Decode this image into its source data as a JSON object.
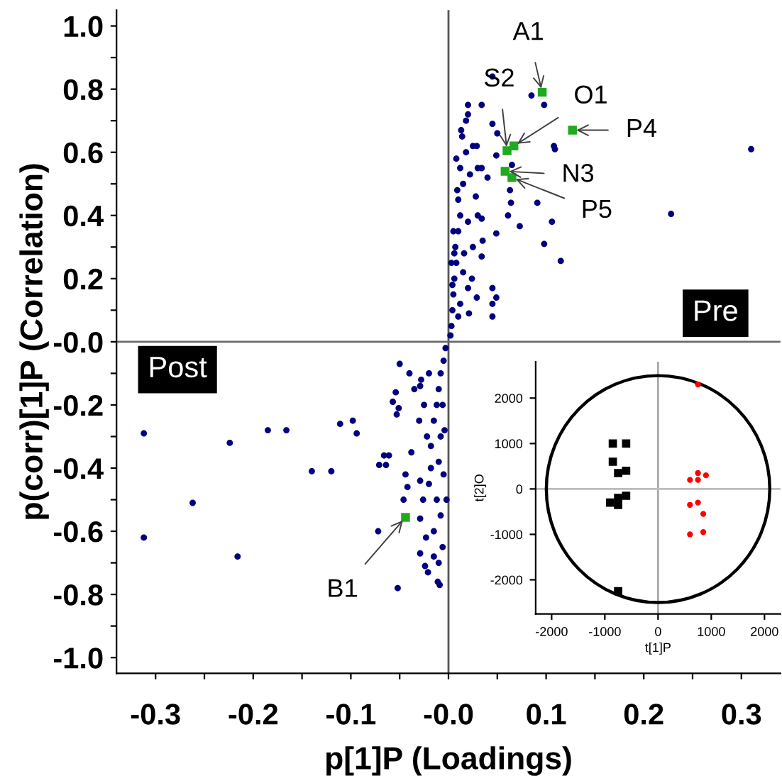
{
  "chart_data": [
    {
      "type": "scatter",
      "xlabel": "p[1]P (Loadings)",
      "ylabel": "p(corr)[1]P (Correlation)",
      "xlim": [
        -0.34,
        0.34
      ],
      "ylim": [
        -1.05,
        1.05
      ],
      "xticks": [
        -0.3,
        {
          "value": -0.25,
          "label": null
        },
        -0.2,
        {
          "value": -0.15,
          "label": null
        },
        -0.1,
        {
          "value": -0.05,
          "label": null
        },
        {
          "value": 0,
          "label": "-0.0"
        },
        {
          "value": 0.05,
          "label": null
        },
        0.1,
        {
          "value": 0.15,
          "label": null
        },
        0.2,
        {
          "value": 0.25,
          "label": null
        },
        0.3
      ],
      "yticks": [
        {
          "value": -1,
          "label": "-1.0"
        },
        {
          "value": -0.9,
          "label": null
        },
        -0.8,
        {
          "value": -0.7,
          "label": null
        },
        -0.6,
        {
          "value": -0.5,
          "label": null
        },
        -0.4,
        {
          "value": -0.3,
          "label": null
        },
        -0.2,
        {
          "value": -0.1,
          "label": null
        },
        {
          "value": 0,
          "label": "-0.0"
        },
        {
          "value": 0.1,
          "label": null
        },
        0.2,
        {
          "value": 0.3,
          "label": null
        },
        0.4,
        {
          "value": 0.5,
          "label": null
        },
        0.6,
        {
          "value": 0.7,
          "label": null
        },
        0.8,
        {
          "value": 0.9,
          "label": null
        },
        {
          "value": 1,
          "label": "1.0"
        }
      ],
      "grid": false,
      "ref_lines": [
        {
          "axis": "x",
          "value": 0,
          "color": "#555555"
        },
        {
          "axis": "y",
          "value": 0,
          "color": "#6a6a6a"
        }
      ],
      "series": [
        {
          "color": "#000080",
          "marker": "circle",
          "x": [
            0.045,
            0.085,
            0.098,
            0.02,
            0.034,
            0.045,
            0.05,
            0.108,
            0.109,
            0.31,
            0.228,
            0.091,
            0.106,
            0.098,
            0.115,
            0.073,
            0.064,
            0.061,
            0.049,
            0.045,
            0.049,
            0.045,
            0.045,
            0.034,
            0.034,
            0.029,
            0.021,
            0.024,
            0.035,
            0.034,
            0.04,
            0.049,
            0.065,
            0.063,
            0.029,
            0.002,
            0.003,
            0.004,
            0.005,
            0.006,
            0.008,
            0.007,
            0.01,
            0.012,
            0.01,
            0.015,
            0.012,
            0.018,
            0.014,
            0.018,
            0.02,
            0.025,
            0.022,
            0.028,
            0.02,
            0.025,
            0.015,
            0.012,
            0.006,
            0.004,
            0.009,
            0.005,
            0.003,
            0.016,
            0.02,
            0.01,
            0.008,
            0.013,
            0.03,
            0.03,
            -0.312,
            -0.224,
            -0.185,
            -0.166,
            -0.111,
            -0.098,
            -0.094,
            -0.14,
            -0.12,
            -0.262,
            -0.312,
            -0.216,
            -0.072,
            -0.052,
            -0.071,
            -0.066,
            -0.061,
            -0.064,
            -0.053,
            -0.054,
            -0.057,
            -0.051,
            -0.044,
            -0.046,
            -0.042,
            -0.029,
            -0.029,
            -0.021,
            -0.024,
            -0.011,
            -0.009,
            -0.015,
            -0.029,
            -0.023,
            -0.026,
            -0.05,
            -0.029,
            -0.003,
            -0.005,
            -0.008,
            -0.01,
            -0.012,
            -0.015,
            -0.008,
            -0.018,
            -0.01,
            -0.005,
            -0.02,
            -0.012,
            -0.008,
            -0.015,
            -0.006,
            -0.018,
            -0.022,
            -0.025,
            -0.02,
            -0.028,
            -0.03,
            -0.004,
            -0.006,
            -0.035,
            -0.04,
            -0.038,
            -0.002,
            -0.01
          ],
          "values": [
            0.84,
            0.78,
            0.75,
            0.75,
            0.75,
            0.69,
            0.66,
            0.62,
            0.61,
            0.61,
            0.405,
            0.44,
            0.38,
            0.31,
            0.256,
            0.366,
            0.44,
            0.4,
            0.343,
            0.17,
            0.14,
            0.12,
            0.08,
            0.39,
            0.27,
            0.14,
            0.09,
            0.2,
            0.32,
            0.55,
            0.52,
            0.59,
            0.56,
            0.48,
            0.62,
            0.02,
            0.05,
            0.1,
            0.15,
            0.2,
            0.25,
            0.3,
            0.35,
            0.4,
            0.45,
            0.5,
            0.55,
            0.6,
            0.65,
            0.7,
            0.72,
            0.62,
            0.53,
            0.46,
            0.38,
            0.3,
            0.22,
            0.12,
            0.28,
            0.18,
            0.48,
            0.35,
            0.25,
            0.28,
            0.17,
            0.08,
            0.58,
            0.67,
            0.55,
            0.4,
            -0.29,
            -0.32,
            -0.28,
            -0.28,
            -0.26,
            -0.25,
            -0.29,
            -0.41,
            -0.41,
            -0.51,
            -0.62,
            -0.68,
            -0.6,
            -0.78,
            -0.39,
            -0.36,
            -0.36,
            -0.39,
            -0.23,
            -0.16,
            -0.19,
            -0.21,
            -0.42,
            -0.5,
            -0.46,
            -0.44,
            -0.67,
            -0.73,
            -0.71,
            -0.76,
            -0.77,
            -0.68,
            -0.56,
            -0.62,
            -0.5,
            -0.07,
            -0.14,
            -0.02,
            -0.06,
            -0.1,
            -0.15,
            -0.2,
            -0.25,
            -0.3,
            -0.33,
            -0.38,
            -0.42,
            -0.45,
            -0.5,
            -0.55,
            -0.6,
            -0.65,
            -0.4,
            -0.3,
            -0.2,
            -0.1,
            -0.12,
            -0.25,
            -0.28,
            -0.2,
            -0.15,
            -0.1,
            -0.35,
            -0.5,
            -0.7
          ]
        },
        {
          "color": "#1faa1f",
          "marker": "square",
          "x": [
            0.096,
            0.127,
            0.06,
            0.067,
            0.058,
            0.065,
            -0.044
          ],
          "values": [
            0.79,
            0.67,
            0.605,
            0.62,
            0.54,
            0.52,
            -0.556
          ]
        }
      ],
      "annotations": [
        {
          "text": "A1",
          "x": 0.096,
          "y": 0.79
        },
        {
          "text": "P4",
          "x": 0.127,
          "y": 0.67
        },
        {
          "text": "S2",
          "x": 0.06,
          "y": 0.605
        },
        {
          "text": "O1",
          "x": 0.067,
          "y": 0.62
        },
        {
          "text": "N3",
          "x": 0.058,
          "y": 0.54
        },
        {
          "text": "P5",
          "x": 0.065,
          "y": 0.52
        },
        {
          "text": "B1",
          "x": -0.044,
          "y": -0.556
        },
        "Post",
        "Pre"
      ]
    },
    {
      "type": "scatter",
      "xlabel": "t[1]P",
      "ylabel": "t[2]O",
      "xlim": [
        -2300,
        2300
      ],
      "ylim": [
        -2750,
        2800
      ],
      "xticks": [
        -2000,
        -1000,
        0,
        1000,
        2000
      ],
      "yticks": [
        -2000,
        -1000,
        0,
        1000,
        2000
      ],
      "grid": false,
      "ref_lines": [
        {
          "axis": "x",
          "value": 0,
          "color": "#a8a8a8"
        },
        {
          "axis": "y",
          "value": 0,
          "color": "#bcbcbc"
        }
      ],
      "series": [
        {
          "color": "#000000",
          "marker": "square",
          "x": [
            -850,
            -600,
            -850,
            -750,
            -600,
            -900,
            -750,
            -750,
            -600,
            -750
          ],
          "values": [
            1000,
            1000,
            600,
            350,
            400,
            -300,
            -200,
            -350,
            -150,
            -2250
          ]
        },
        {
          "color": "#ff0000",
          "marker": "circle",
          "x": [
            750,
            750,
            900,
            600,
            750,
            600,
            750,
            850,
            600,
            850
          ],
          "values": [
            2300,
            350,
            300,
            200,
            200,
            -350,
            -300,
            -550,
            -1000,
            -950
          ]
        }
      ]
    }
  ]
}
